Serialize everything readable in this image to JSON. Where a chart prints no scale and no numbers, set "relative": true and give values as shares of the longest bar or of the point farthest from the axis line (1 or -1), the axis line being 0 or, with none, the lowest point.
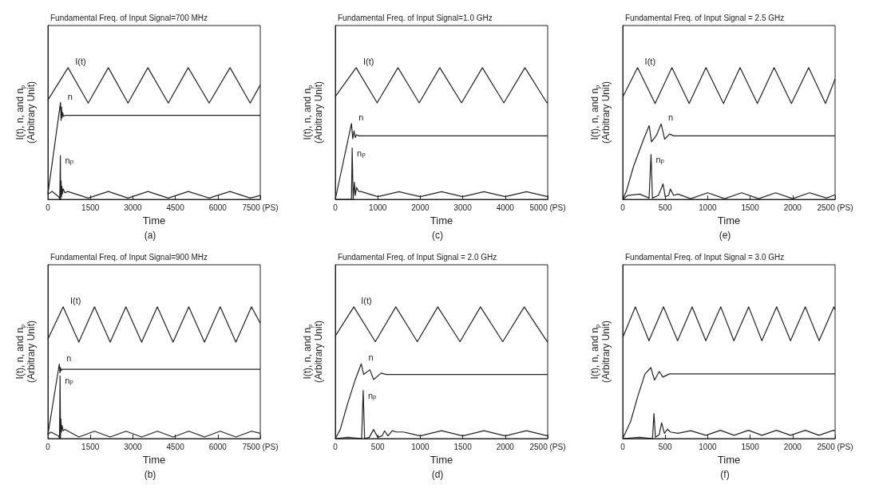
{
  "chart_data": [
    {
      "type": "line",
      "title": "Fundamental Freq. of Input Signal=700 MHz",
      "subtitle": "(a)",
      "xlabel": "Time",
      "ylabel": "I(t), n, and n$_{p}$\n(Arbitrary Unit)",
      "relative": true,
      "marker": "none",
      "xlim": [
        0,
        7500
      ],
      "xticks": [
        0,
        1500,
        3000,
        4500,
        6000,
        {
          "value": 7500,
          "label": "7500 (PS)"
        }
      ],
      "series": [
        {
          "name": "I(t)",
          "color": "#222222",
          "x": [
            0,
            712,
            1423,
            2135,
            2829,
            3532,
            4252,
            4956,
            5694,
            6432,
            7144,
            7500
          ],
          "values": [
            0.755,
            1,
            0.731,
            1,
            0.731,
            1,
            0.731,
            1,
            0.731,
            1,
            0.731,
            0.868
          ]
        },
        {
          "name": "n",
          "color": "#222222",
          "x": [
            0,
            445,
            465,
            480,
            500,
            520,
            550,
            600,
            7500
          ],
          "values": [
            0.04,
            0.735,
            0.6,
            0.7,
            0.62,
            0.66,
            0.63,
            0.638,
            0.638
          ]
        },
        {
          "name": "n$_{p}$",
          "color": "#222222",
          "x": [
            0,
            150,
            380,
            420,
            440,
            450,
            465,
            480,
            495,
            510,
            540,
            600,
            700,
            1423,
            2135,
            2829,
            3532,
            4252,
            4956,
            5694,
            6432,
            7144,
            7500
          ],
          "values": [
            0.04,
            0.06,
            0.02,
            0.0,
            0.333,
            0.0,
            0.14,
            0.02,
            0.1,
            0.04,
            0.08,
            0.05,
            0.06,
            0.01,
            0.06,
            0.01,
            0.06,
            0.01,
            0.06,
            0.01,
            0.06,
            0.01,
            0.03
          ]
        }
      ]
    },
    {
      "type": "line",
      "title": "Fundamental Freq. of Input Signal=1.0 GHz",
      "subtitle": "(c)",
      "xlabel": "Time",
      "ylabel": "I(t), n, and n$_{p}$\n(Arbitrary Unit)",
      "relative": true,
      "marker": "none",
      "xlim": [
        0,
        5000
      ],
      "xticks": [
        0,
        1000,
        2000,
        3000,
        4000,
        {
          "value": 5000,
          "label": "5000 (PS)"
        }
      ],
      "series": [
        {
          "name": "I(t)",
          "color": "#222222",
          "x": [
            0,
            490,
            985,
            1475,
            1976,
            2460,
            2972,
            3462,
            3969,
            4464,
            4983,
            5000
          ],
          "values": [
            0.78,
            1,
            0.733,
            1,
            0.733,
            1,
            0.733,
            1,
            0.733,
            1,
            0.733,
            0.74
          ]
        },
        {
          "name": "n",
          "color": "#222222",
          "x": [
            0,
            380,
            410,
            440,
            470,
            500,
            550,
            5000
          ],
          "values": [
            0.0,
            0.576,
            0.46,
            0.52,
            0.47,
            0.49,
            0.482,
            0.482
          ]
        },
        {
          "name": "n$_{p}$",
          "color": "#222222",
          "x": [
            0,
            380,
            397,
            420,
            450,
            470,
            500,
            550,
            600,
            1000,
            1500,
            2000,
            2500,
            3000,
            3500,
            4000,
            4500,
            5000
          ],
          "values": [
            0.0,
            0.0,
            0.39,
            0.0,
            0.13,
            0.03,
            0.09,
            0.06,
            0.06,
            0.02,
            0.058,
            0.02,
            0.058,
            0.02,
            0.058,
            0.02,
            0.058,
            0.02
          ]
        }
      ]
    },
    {
      "type": "line",
      "title": "Fundamental Freq. of Input Signal = 2.5 GHz",
      "subtitle": "(e)",
      "xlabel": "Time",
      "ylabel": "I(t), n, and n$_{p}$\n(Arbitrary Unit)",
      "relative": true,
      "marker": "none",
      "xlim": [
        0,
        2500
      ],
      "xticks": [
        0,
        500,
        1000,
        1500,
        2000,
        {
          "value": 2500,
          "label": "2500 (PS)"
        }
      ],
      "series": [
        {
          "name": "I(t)",
          "color": "#222222",
          "x": [
            0,
            175,
            381,
            579,
            782,
            980,
            1186,
            1381,
            1585,
            1782,
            1986,
            2189,
            2387,
            2500
          ],
          "values": [
            0.777,
            1,
            0.728,
            1,
            0.728,
            1,
            0.728,
            1,
            0.728,
            1,
            0.728,
            1,
            0.728,
            0.913
          ]
        },
        {
          "name": "n",
          "color": "#222222",
          "x": [
            0,
            42,
            127,
            240,
            311,
            339,
            400,
            452,
            494,
            551,
            600,
            2500
          ],
          "values": [
            0,
            0.06,
            0.25,
            0.447,
            0.56,
            0.437,
            0.49,
            0.573,
            0.457,
            0.496,
            0.482,
            0.482
          ]
        },
        {
          "name": "n$_{p}$",
          "color": "#222222",
          "x": [
            0,
            60,
            200,
            310,
            333,
            350,
            420,
            475,
            500,
            540,
            560,
            600,
            650,
            800,
            1000,
            1200,
            1400,
            1600,
            1800,
            2000,
            2200,
            2400,
            2500
          ],
          "values": [
            0,
            0.03,
            0.04,
            0.01,
            0.34,
            0.01,
            0.03,
            0.117,
            0.02,
            0.03,
            0.078,
            0.03,
            0.04,
            0.005,
            0.05,
            0.005,
            0.05,
            0.005,
            0.05,
            0.005,
            0.05,
            0.01,
            0.035
          ]
        }
      ]
    },
    {
      "type": "line",
      "title": "Fundamental Freq. of Input Signal=900 MHz",
      "subtitle": "(b)",
      "xlabel": "Time",
      "ylabel": "I(t), n, and n$_{p}$\n(Arbitrary Unit)",
      "relative": true,
      "marker": "none",
      "xlim": [
        0,
        7500
      ],
      "xticks": [
        0,
        1500,
        3000,
        4500,
        6000,
        {
          "value": 7500,
          "label": "7500 (PS)"
        }
      ],
      "series": [
        {
          "name": "I(t)",
          "color": "#222222",
          "x": [
            0,
            537,
            1093,
            1645,
            2200,
            2755,
            3310,
            3865,
            4420,
            4975,
            5530,
            6085,
            6640,
            7189,
            7500
          ],
          "values": [
            0.756,
            1,
            0.732,
            1,
            0.732,
            1,
            0.732,
            1,
            0.732,
            1,
            0.732,
            1,
            0.732,
            1,
            0.877
          ]
        },
        {
          "name": "n",
          "color": "#222222",
          "x": [
            0,
            403,
            425,
            445,
            465,
            500,
            7500
          ],
          "values": [
            0.03,
            0.566,
            0.5,
            0.54,
            0.515,
            0.526,
            0.526
          ]
        },
        {
          "name": "n$_{p}$",
          "color": "#222222",
          "x": [
            0,
            100,
            380,
            410,
            430,
            445,
            460,
            480,
            500,
            540,
            600,
            1093,
            1645,
            2200,
            2755,
            3310,
            3865,
            4420,
            4975,
            5530,
            6085,
            6640,
            7189,
            7500
          ],
          "values": [
            0.03,
            0.05,
            0.02,
            0.0,
            0.476,
            0.0,
            0.15,
            0.05,
            0.1,
            0.06,
            0.07,
            0.012,
            0.056,
            0.012,
            0.056,
            0.012,
            0.056,
            0.012,
            0.056,
            0.012,
            0.056,
            0.012,
            0.056,
            0.04
          ]
        }
      ]
    },
    {
      "type": "line",
      "title": "Fundamental Freq. of Input Signal = 2.0 GHz",
      "subtitle": "(d)",
      "xlabel": "Time",
      "ylabel": "I(t), n, and n$_{p}$\n(Arbitrary Unit)",
      "relative": true,
      "marker": "none",
      "xlim": [
        0,
        2500
      ],
      "xticks": [
        0,
        500,
        1000,
        1500,
        2000,
        {
          "value": 2500,
          "label": "2500 (PS)"
        }
      ],
      "series": [
        {
          "name": "I(t)",
          "color": "#222222",
          "x": [
            0,
            218,
            471,
            712,
            965,
            1206,
            1468,
            1709,
            1971,
            2224,
            2494,
            2500
          ],
          "values": [
            0.779,
            1,
            0.736,
            1,
            0.736,
            1,
            0.736,
            1,
            0.736,
            1,
            0.736,
            0.74
          ]
        },
        {
          "name": "n",
          "color": "#222222",
          "x": [
            0,
            58,
            145,
            233,
            305,
            334,
            407,
            451,
            538,
            600,
            2500
          ],
          "values": [
            0,
            0.069,
            0.266,
            0.444,
            0.568,
            0.487,
            0.523,
            0.448,
            0.497,
            0.487,
            0.487
          ]
        },
        {
          "name": "n$_{p}$",
          "color": "#222222",
          "x": [
            0,
            150,
            310,
            328,
            345,
            400,
            450,
            500,
            550,
            580,
            620,
            670,
            720,
            800,
            1000,
            1250,
            1500,
            1750,
            2000,
            2250,
            2500
          ],
          "values": [
            0,
            0.01,
            0.0,
            0.365,
            0.0,
            0.01,
            0.069,
            0.01,
            0.02,
            0.059,
            0.02,
            0.06,
            0.05,
            0.05,
            0.02,
            0.06,
            0.02,
            0.06,
            0.02,
            0.06,
            0.02
          ]
        }
      ]
    },
    {
      "type": "line",
      "title": "Fundamental Freq. of Input Signal = 3.0 GHz",
      "subtitle": "(f)",
      "xlabel": "Time",
      "ylabel": "I(t), n, and n$_{p}$\n(Arbitrary Unit)",
      "relative": true,
      "marker": "none",
      "xlim": [
        0,
        2500
      ],
      "xticks": [
        0,
        500,
        1000,
        1500,
        2000,
        {
          "value": 2500,
          "label": "2500 (PS)"
        }
      ],
      "series": [
        {
          "color": "#222222",
          "x": [
            0,
            149,
            309,
            480,
            646,
            817,
            978,
            1154,
            1309,
            1483,
            1638,
            1812,
            1975,
            2149,
            2312,
            2486,
            2500
          ],
          "values": [
            0.767,
            1,
            0.743,
            1,
            0.743,
            1,
            0.743,
            1,
            0.743,
            1,
            0.743,
            1,
            0.743,
            1,
            0.743,
            1,
            0.98
          ]
        },
        {
          "color": "#222222",
          "x": [
            0,
            93,
            177,
            261,
            331,
            374,
            430,
            472,
            550,
            2500
          ],
          "values": [
            0,
            0.13,
            0.32,
            0.49,
            0.539,
            0.444,
            0.51,
            0.467,
            0.491,
            0.491
          ]
        },
        {
          "color": "#222222",
          "x": [
            0,
            200,
            350,
            368,
            385,
            430,
            458,
            490,
            528,
            560,
            650,
            800,
            980,
            1150,
            1310,
            1480,
            1640,
            1810,
            1975,
            2150,
            2310,
            2480,
            2500
          ],
          "values": [
            0,
            0.01,
            0.0,
            0.19,
            0.01,
            0.03,
            0.12,
            0.04,
            0.072,
            0.05,
            0.04,
            0.06,
            0.025,
            0.063,
            0.025,
            0.063,
            0.025,
            0.063,
            0.025,
            0.063,
            0.025,
            0.063,
            0.06
          ]
        }
      ]
    }
  ]
}
